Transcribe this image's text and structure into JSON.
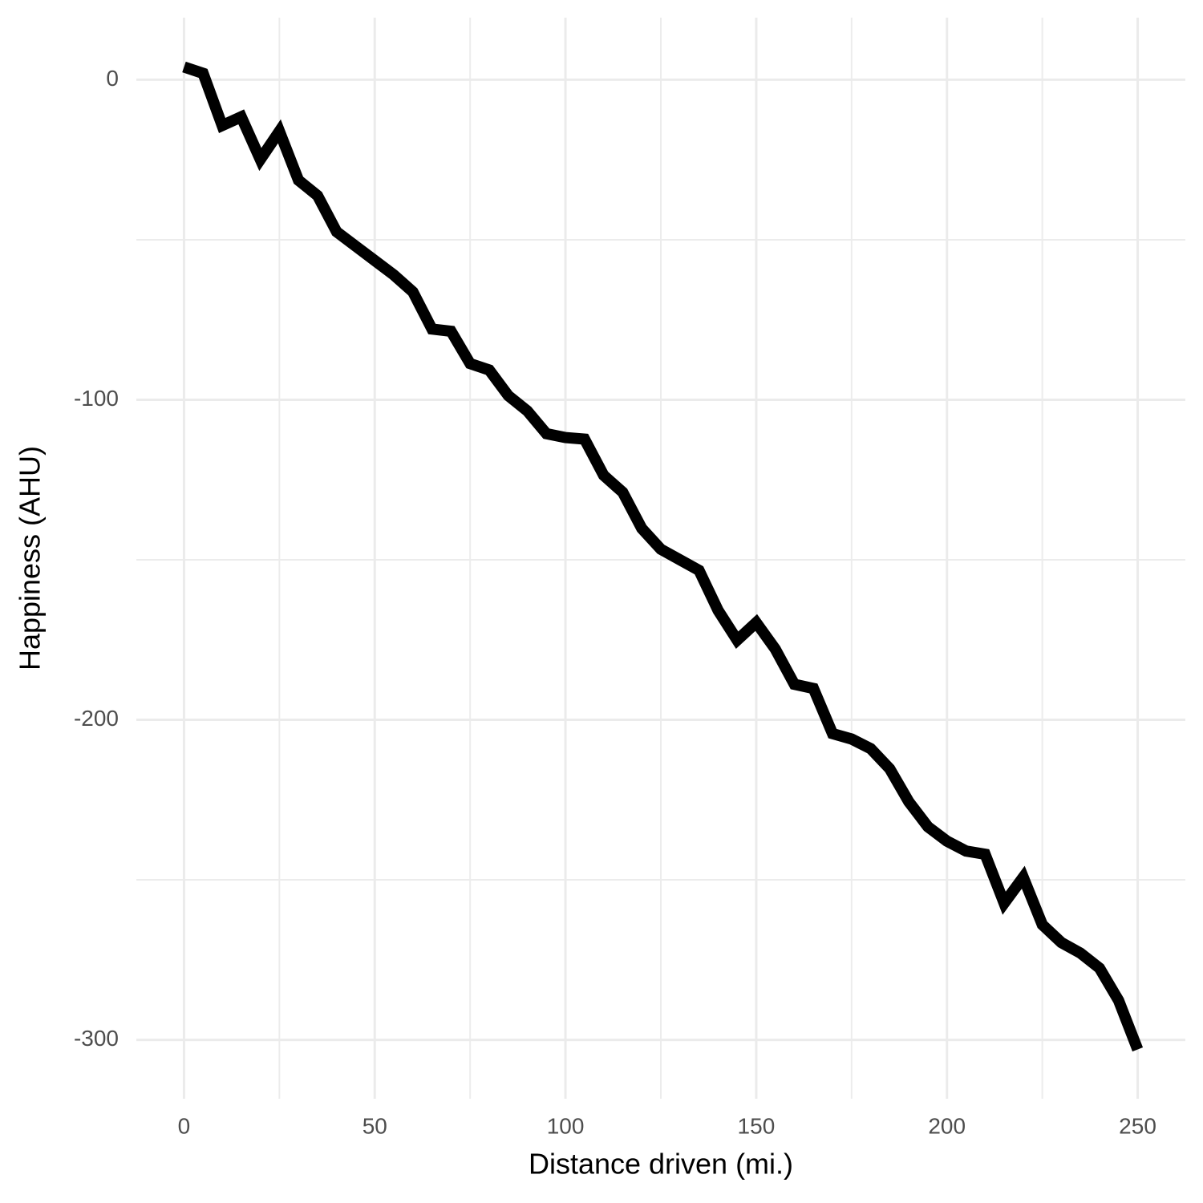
{
  "chart_data": {
    "type": "line",
    "x_label": "Distance driven (mi.)",
    "y_label": "Happiness (AHU)",
    "x": [
      0,
      5,
      10,
      15,
      20,
      25,
      30,
      35,
      40,
      45,
      50,
      55,
      60,
      65,
      70,
      75,
      80,
      85,
      90,
      95,
      100,
      105,
      110,
      115,
      120,
      125,
      130,
      135,
      140,
      145,
      150,
      155,
      160,
      165,
      170,
      175,
      180,
      185,
      190,
      195,
      200,
      205,
      210,
      215,
      220,
      225,
      230,
      235,
      240,
      245,
      250
    ],
    "series": [
      {
        "color": "#000000",
        "values": [
          4,
          2,
          -14.3,
          -11.6,
          -24.9,
          -16.1,
          -31.4,
          -36.2,
          -47.5,
          -52,
          -56.5,
          -61,
          -66.3,
          -77.9,
          -78.6,
          -88.7,
          -90.7,
          -98.7,
          -103.5,
          -110.6,
          -111.8,
          -112.3,
          -123.6,
          -128.9,
          -140.2,
          -146.7,
          -150,
          -153.3,
          -165.8,
          -175.1,
          -169.6,
          -177.9,
          -188.9,
          -190.2,
          -204.3,
          -206,
          -209,
          -215.3,
          -225.6,
          -233.4,
          -237.9,
          -241,
          -242,
          -257.3,
          -249.2,
          -264,
          -269.6,
          -272.9,
          -277.6,
          -287.7,
          -303
        ]
      }
    ],
    "xlim": [
      -12.5,
      262.5
    ],
    "ylim": [
      -318.4,
      19.4
    ],
    "xticks": [
      0,
      50,
      100,
      150,
      200,
      250
    ],
    "yticks": [
      0,
      -100,
      -200,
      -300
    ],
    "x_minor_ticks": [
      25,
      75,
      125,
      175,
      225
    ],
    "y_minor_ticks": [
      -50,
      -150,
      -250
    ],
    "grid": true
  }
}
